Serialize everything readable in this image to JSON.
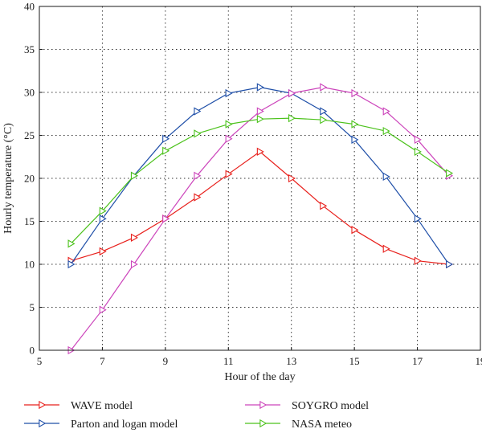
{
  "chart_data": {
    "type": "line",
    "title": "",
    "xlabel": "Hour of the day",
    "ylabel": "Hourly temperature (°C)",
    "xlim": [
      5,
      19
    ],
    "ylim": [
      0,
      40
    ],
    "xticks": [
      5,
      7,
      9,
      11,
      13,
      15,
      17,
      19
    ],
    "yticks": [
      0,
      5,
      10,
      15,
      20,
      25,
      30,
      35,
      40
    ],
    "grid": "dotted",
    "legend_placement": "below",
    "series": [
      {
        "name": "WAVE model",
        "color": "#e8201c",
        "marker": "triangle-right",
        "x": [
          6,
          7,
          8,
          9,
          10,
          11,
          12,
          13,
          14,
          15,
          16,
          17,
          18
        ],
        "y": [
          10.4,
          11.5,
          13.1,
          15.3,
          17.8,
          20.5,
          23.1,
          20.0,
          16.8,
          14.0,
          11.8,
          10.4,
          10.0
        ]
      },
      {
        "name": "Parton and logan model",
        "color": "#1f4fa8",
        "marker": "triangle-right",
        "x": [
          6,
          7,
          8,
          9,
          10,
          11,
          12,
          13,
          14,
          15,
          16,
          17,
          18
        ],
        "y": [
          10.0,
          15.3,
          20.3,
          24.6,
          27.8,
          29.9,
          30.6,
          29.9,
          27.8,
          24.5,
          20.2,
          15.3,
          10.0
        ]
      },
      {
        "name": "SOYGRO model",
        "color": "#cc44bb",
        "marker": "triangle-right",
        "x": [
          6,
          7,
          8,
          9,
          10,
          11,
          12,
          13,
          14,
          15,
          16,
          17,
          18
        ],
        "y": [
          0.0,
          4.7,
          10.0,
          15.3,
          20.3,
          24.6,
          27.8,
          29.9,
          30.6,
          29.9,
          27.8,
          24.5,
          20.3
        ]
      },
      {
        "name": "NASA meteo",
        "color": "#4cc21c",
        "marker": "triangle-right",
        "x": [
          6,
          7,
          8,
          9,
          10,
          11,
          12,
          13,
          14,
          15,
          16,
          17,
          18
        ],
        "y": [
          12.4,
          16.2,
          20.3,
          23.2,
          25.2,
          26.3,
          26.9,
          27.0,
          26.8,
          26.3,
          25.5,
          23.1,
          20.6
        ]
      }
    ]
  }
}
